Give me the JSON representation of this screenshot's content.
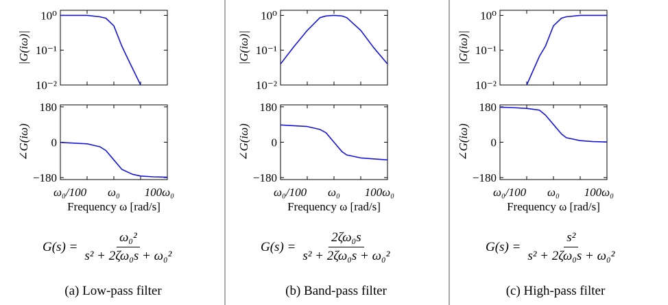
{
  "chart_data": [
    {
      "type": "line",
      "subplot": "magnitude",
      "panel": "low-pass",
      "xscale": "log",
      "xlim": [
        0.01,
        100
      ],
      "yscale": "log",
      "ylim": [
        0.01,
        1.4
      ],
      "ylabel": "|G(iω)|",
      "yticklabels": [
        "10⁰",
        "10⁻¹",
        "10⁻²"
      ],
      "x": [
        0.01,
        0.03,
        0.1,
        0.3,
        0.5,
        1,
        2,
        3,
        10
      ],
      "y": [
        1,
        1,
        1,
        0.91,
        0.83,
        0.5,
        0.13,
        0.067,
        0.01
      ]
    },
    {
      "type": "line",
      "subplot": "phase",
      "panel": "low-pass",
      "xscale": "log",
      "xlim": [
        0.01,
        100
      ],
      "ylim": [
        -190,
        190
      ],
      "ylabel": "∠G(iω)",
      "yticklabels": [
        "180",
        "0",
        "−180"
      ],
      "xticklabels": [
        "ω₀/100",
        "ω₀",
        "100ω₀"
      ],
      "xlabel": "Frequency ω [rad/s]",
      "x": [
        0.01,
        0.1,
        0.3,
        0.5,
        1,
        2,
        5,
        10,
        30,
        100
      ],
      "y": [
        -1,
        -8,
        -23,
        -42,
        -90,
        -138,
        -163,
        -172,
        -176,
        -178
      ]
    },
    {
      "type": "line",
      "subplot": "magnitude",
      "panel": "band-pass",
      "xscale": "log",
      "xlim": [
        0.01,
        100
      ],
      "yscale": "log",
      "ylim": [
        0.01,
        1.4
      ],
      "ylabel": "|G(iω)|",
      "yticklabels": [
        "10⁰",
        "10⁻¹",
        "10⁻²"
      ],
      "x": [
        0.01,
        0.03,
        0.1,
        0.3,
        0.5,
        1,
        2,
        3,
        10,
        30,
        100
      ],
      "y": [
        0.04,
        0.12,
        0.37,
        0.86,
        0.96,
        1,
        0.96,
        0.86,
        0.37,
        0.12,
        0.04
      ]
    },
    {
      "type": "line",
      "subplot": "phase",
      "panel": "band-pass",
      "xscale": "log",
      "xlim": [
        0.01,
        100
      ],
      "ylim": [
        -190,
        190
      ],
      "ylabel": "∠G(iω)",
      "yticklabels": [
        "180",
        "0",
        "−180"
      ],
      "xticklabels": [
        "ω₀/100",
        "ω₀",
        "100ω₀"
      ],
      "xlabel": "Frequency ω [rad/s]",
      "x": [
        0.01,
        0.1,
        0.3,
        0.5,
        1,
        2,
        3,
        10,
        100
      ],
      "y": [
        88,
        80,
        65,
        48,
        0,
        -48,
        -65,
        -80,
        -90
      ]
    },
    {
      "type": "line",
      "subplot": "magnitude",
      "panel": "high-pass",
      "xscale": "log",
      "xlim": [
        0.01,
        100
      ],
      "yscale": "log",
      "ylim": [
        0.01,
        1.4
      ],
      "ylabel": "|G(iω)|",
      "yticklabels": [
        "10⁰",
        "10⁻¹",
        "10⁻²"
      ],
      "x": [
        0.1,
        0.3,
        0.5,
        1,
        2,
        3,
        10,
        30,
        100
      ],
      "y": [
        0.01,
        0.067,
        0.13,
        0.5,
        0.83,
        0.91,
        1,
        1,
        1
      ]
    },
    {
      "type": "line",
      "subplot": "phase",
      "panel": "high-pass",
      "xscale": "log",
      "xlim": [
        0.01,
        100
      ],
      "ylim": [
        -190,
        190
      ],
      "ylabel": "∠G(iω)",
      "yticklabels": [
        "180",
        "0",
        "−180"
      ],
      "xticklabels": [
        "ω₀/100",
        "ω₀",
        "100ω₀"
      ],
      "xlabel": "Frequency ω [rad/s]",
      "x": [
        0.01,
        0.03,
        0.1,
        0.3,
        0.5,
        1,
        2,
        3,
        10,
        30,
        100
      ],
      "y": [
        178,
        176,
        172,
        163,
        138,
        90,
        42,
        23,
        8,
        3,
        1
      ]
    }
  ],
  "line_color": "#1414dc",
  "formulas": {
    "lowpass": {
      "lhs": "G(s) =",
      "num": "ω₀²",
      "den": "s² + 2ζω₀s + ω₀²"
    },
    "bandpass": {
      "lhs": "G(s) =",
      "num": "2ζω₀s",
      "den": "s² + 2ζω₀s + ω₀²"
    },
    "highpass": {
      "lhs": "G(s) =",
      "num": "s²",
      "den": "s² + 2ζω₀s + ω₀²"
    }
  },
  "captions": {
    "lowpass": "(a) Low-pass filter",
    "bandpass": "(b) Band-pass filter",
    "highpass": "(c) High-pass filter"
  }
}
